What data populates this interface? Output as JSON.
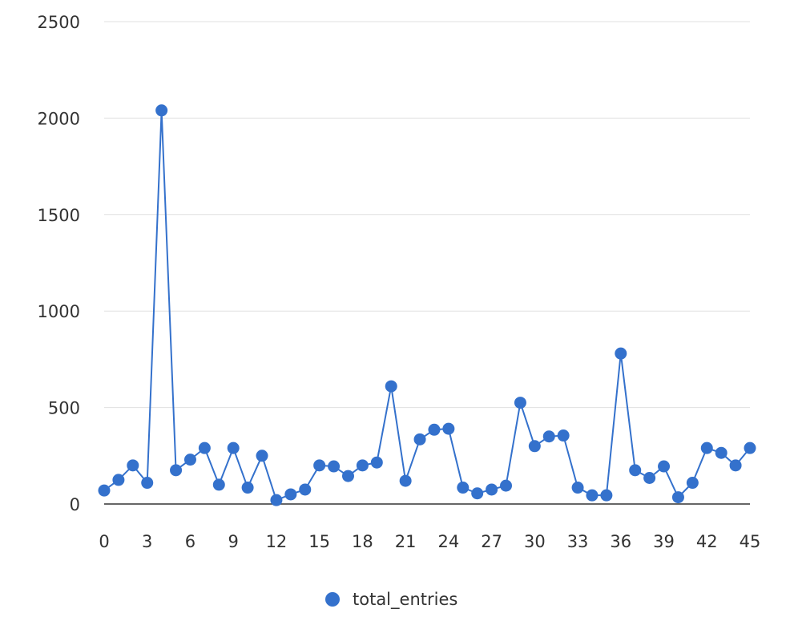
{
  "chart_data": {
    "type": "line",
    "x": [
      0,
      1,
      2,
      3,
      4,
      5,
      6,
      7,
      8,
      9,
      10,
      11,
      12,
      13,
      14,
      15,
      16,
      17,
      18,
      19,
      20,
      21,
      22,
      23,
      24,
      25,
      26,
      27,
      28,
      29,
      30,
      31,
      32,
      33,
      34,
      35,
      36,
      37,
      38,
      39,
      40,
      41,
      42,
      43,
      44,
      45
    ],
    "series": [
      {
        "name": "total_entries",
        "values": [
          70,
          125,
          200,
          110,
          2040,
          175,
          230,
          290,
          100,
          290,
          85,
          250,
          20,
          50,
          75,
          200,
          195,
          145,
          200,
          215,
          610,
          120,
          335,
          385,
          390,
          85,
          55,
          75,
          95,
          525,
          300,
          350,
          355,
          85,
          45,
          45,
          780,
          175,
          135,
          195,
          35,
          110,
          290,
          265,
          200,
          290
        ]
      }
    ],
    "xticks": [
      "0",
      "3",
      "6",
      "9",
      "12",
      "15",
      "18",
      "21",
      "24",
      "27",
      "30",
      "33",
      "36",
      "39",
      "42",
      "45"
    ],
    "yticks": [
      "0",
      "500",
      "1000",
      "1500",
      "2000",
      "2500"
    ],
    "ylim": [
      0,
      2500
    ],
    "xlim": [
      0,
      45
    ],
    "grid": true,
    "legend_position": "bottom",
    "colors": {
      "series": "#3471cc",
      "grid": "#e0e0e0",
      "axis": "#333333"
    },
    "title": "",
    "xlabel": "",
    "ylabel": ""
  }
}
